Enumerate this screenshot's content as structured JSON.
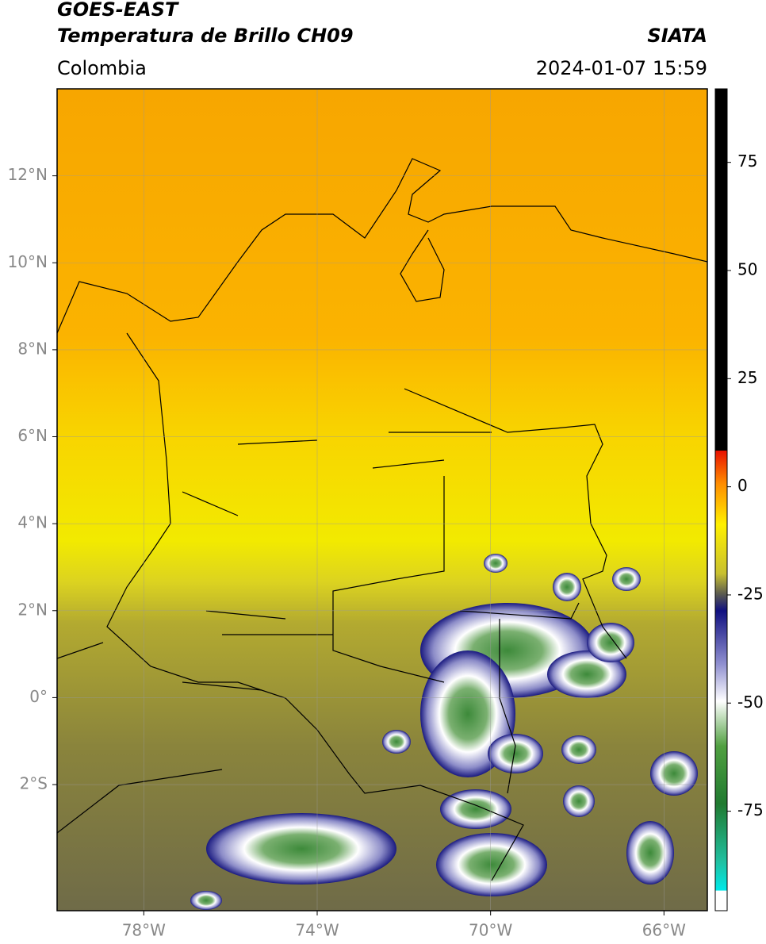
{
  "header": {
    "title": "GOES-EAST",
    "subtitle": "Temperatura de Brillo CH09",
    "region": "Colombia",
    "source": "SIATA",
    "timestamp": "2024-01-07 15:59"
  },
  "map": {
    "lonlim": [
      -80,
      -65
    ],
    "latlim": [
      -4.9,
      14
    ],
    "lat_ticks": [
      {
        "value": 12,
        "label": "12°N"
      },
      {
        "value": 10,
        "label": "10°N"
      },
      {
        "value": 8,
        "label": "8°N"
      },
      {
        "value": 6,
        "label": "6°N"
      },
      {
        "value": 4,
        "label": "4°N"
      },
      {
        "value": 2,
        "label": "2°N"
      },
      {
        "value": 0,
        "label": "0°"
      },
      {
        "value": -2,
        "label": "2°S"
      }
    ],
    "lon_ticks": [
      {
        "value": -78,
        "label": "78°W"
      },
      {
        "value": -74,
        "label": "74°W"
      },
      {
        "value": -70,
        "label": "70°W"
      },
      {
        "value": -66,
        "label": "66°W"
      }
    ],
    "grid": true
  },
  "colorbar": {
    "range": [
      -98,
      92
    ],
    "ticks": [
      75,
      50,
      25,
      0,
      -25,
      -50,
      -75
    ]
  }
}
